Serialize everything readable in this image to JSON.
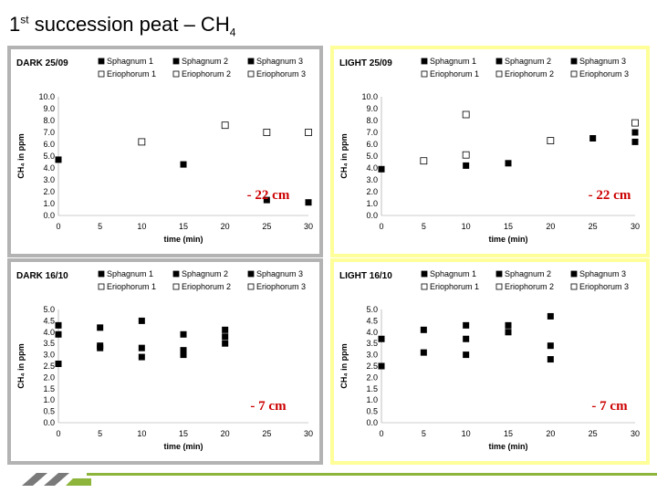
{
  "page": {
    "title_main": "1",
    "title_sup": "st",
    "title_rest": " succession peat – CH",
    "title_sub": "4"
  },
  "colors": {
    "frame_gray": "#b3b3b3",
    "frame_yellow": "#ffff99",
    "bg_white": "#ffffff",
    "marker": "#000000",
    "annotation_red": "#cc0000",
    "footer_green": "#8db43b"
  },
  "chart_data": [
    {
      "id": "dark-2509",
      "type": "scatter",
      "title": "DARK 25/09",
      "ylabel": "CH₄ in ppm",
      "xlabel": "time (min)",
      "xlim": [
        0,
        30
      ],
      "ylim": [
        0,
        10
      ],
      "xticks": [
        "0",
        "5",
        "10",
        "15",
        "20",
        "25",
        "30"
      ],
      "yticks": [
        "0.0",
        "1.0",
        "2.0",
        "3.0",
        "4.0",
        "5.0",
        "6.0",
        "7.0",
        "8.0",
        "9.0",
        "10.0"
      ],
      "legend": [
        "Sphagnum 1",
        "Sphagnum 2",
        "Sphagnum 3",
        "Eriophorum 1",
        "Eriophorum 2",
        "Eriophorum 3"
      ],
      "annotation": "- 22 cm",
      "filled": [
        [
          0,
          4.7
        ],
        [
          15,
          4.3
        ],
        [
          25,
          1.3
        ],
        [
          30,
          1.1
        ]
      ],
      "hollow": [
        [
          10,
          6.2
        ],
        [
          20,
          7.6
        ],
        [
          25,
          7.0
        ],
        [
          30,
          7.0
        ]
      ]
    },
    {
      "id": "light-2509",
      "type": "scatter",
      "title": "LIGHT 25/09",
      "ylabel": "CH₄ in ppm",
      "xlabel": "time (min)",
      "xlim": [
        0,
        30
      ],
      "ylim": [
        0,
        10
      ],
      "xticks": [
        "0",
        "5",
        "10",
        "15",
        "20",
        "25",
        "30"
      ],
      "yticks": [
        "0.0",
        "1.0",
        "2.0",
        "3.0",
        "4.0",
        "5.0",
        "6.0",
        "7.0",
        "8.0",
        "9.0",
        "10.0"
      ],
      "legend": [
        "Sphagnum 1",
        "Sphagnum 2",
        "Sphagnum 3",
        "Eriophorum 1",
        "Eriophorum 2",
        "Eriophorum 3"
      ],
      "annotation": "- 22 cm",
      "filled": [
        [
          0,
          3.9
        ],
        [
          10,
          4.2
        ],
        [
          15,
          4.4
        ],
        [
          25,
          6.5
        ],
        [
          30,
          6.2
        ],
        [
          30,
          7.0
        ]
      ],
      "hollow": [
        [
          5,
          4.6
        ],
        [
          10,
          5.1
        ],
        [
          10,
          8.5
        ],
        [
          20,
          6.3
        ],
        [
          30,
          7.8
        ]
      ]
    },
    {
      "id": "dark-1610",
      "type": "scatter",
      "title": "DARK 16/10",
      "ylabel": "CH₄ in ppm",
      "xlabel": "time (min)",
      "xlim": [
        0,
        30
      ],
      "ylim": [
        0,
        5
      ],
      "xticks": [
        "0",
        "5",
        "10",
        "15",
        "20",
        "25",
        "30"
      ],
      "yticks": [
        "0.0",
        "0.5",
        "1.0",
        "1.5",
        "2.0",
        "2.5",
        "3.0",
        "3.5",
        "4.0",
        "4.5",
        "5.0"
      ],
      "legend": [
        "Sphagnum 1",
        "Sphagnum 2",
        "Sphagnum 3",
        "Eriophorum 1",
        "Eriophorum 2",
        "Eriophorum 3"
      ],
      "annotation": "- 7 cm",
      "filled": [
        [
          0,
          4.3
        ],
        [
          0,
          3.9
        ],
        [
          0,
          2.6
        ],
        [
          5,
          4.2
        ],
        [
          5,
          3.4
        ],
        [
          5,
          3.3
        ],
        [
          10,
          4.5
        ],
        [
          10,
          3.3
        ],
        [
          10,
          2.9
        ],
        [
          15,
          3.9
        ],
        [
          15,
          3.2
        ],
        [
          15,
          3.0
        ],
        [
          20,
          4.1
        ],
        [
          20,
          3.8
        ],
        [
          20,
          3.5
        ]
      ],
      "hollow": []
    },
    {
      "id": "light-1610",
      "type": "scatter",
      "title": "LIGHT 16/10",
      "ylabel": "CH₄ in ppm",
      "xlabel": "time (min)",
      "xlim": [
        0,
        30
      ],
      "ylim": [
        0,
        5
      ],
      "xticks": [
        "0",
        "5",
        "10",
        "15",
        "20",
        "25",
        "30"
      ],
      "yticks": [
        "0.0",
        "0.5",
        "1.0",
        "1.5",
        "2.0",
        "2.5",
        "3.0",
        "3.5",
        "4.0",
        "4.5",
        "5.0"
      ],
      "legend": [
        "Sphagnum 1",
        "Sphagnum 2",
        "Sphagnum 3",
        "Eriophorum 1",
        "Eriophorum 2",
        "Eriophorum 3"
      ],
      "annotation": "- 7 cm",
      "filled": [
        [
          0,
          3.7
        ],
        [
          0,
          2.5
        ],
        [
          5,
          4.1
        ],
        [
          5,
          3.1
        ],
        [
          10,
          4.3
        ],
        [
          10,
          3.7
        ],
        [
          10,
          3.0
        ],
        [
          15,
          4.3
        ],
        [
          15,
          4.0
        ],
        [
          20,
          4.7
        ],
        [
          20,
          3.4
        ],
        [
          20,
          2.8
        ]
      ],
      "hollow": []
    }
  ]
}
